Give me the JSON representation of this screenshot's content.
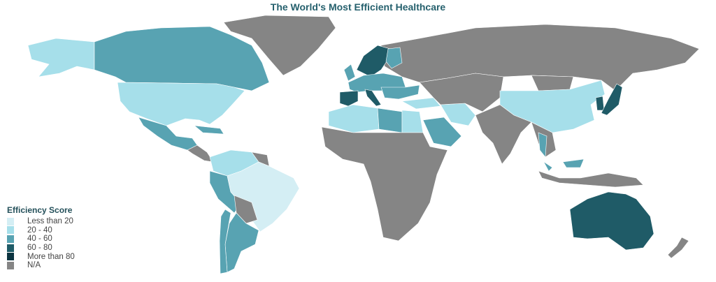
{
  "title": "The World's Most Efficient Healthcare",
  "legend": {
    "title": "Efficiency Score",
    "items": [
      {
        "label": "Less than 20",
        "color": "#d4eef4"
      },
      {
        "label": "20 - 40",
        "color": "#a6dfea"
      },
      {
        "label": "40 - 60",
        "color": "#58a3b2"
      },
      {
        "label": "60 - 80",
        "color": "#1f5b67"
      },
      {
        "label": "More than 80",
        "color": "#0c3440"
      },
      {
        "label": "N/A",
        "color": "#858585"
      }
    ]
  },
  "region_categories": {
    "greenland": 5,
    "canada": 2,
    "alaska": 1,
    "usa": 1,
    "mexico": 2,
    "central_america": 5,
    "caribbean": 2,
    "colombia_venezuela": 1,
    "peru": 2,
    "brazil": 0,
    "bolivia_paraguay": 5,
    "argentina": 2,
    "chile": 2,
    "guianas": 5,
    "russia": 5,
    "scandinavia": 3,
    "finland": 2,
    "western_europe": 2,
    "spain_portugal": 3,
    "italy": 3,
    "eastern_europe": 2,
    "uk": 2,
    "north_africa_west": 1,
    "libya": 2,
    "egypt": 1,
    "africa": 5,
    "saudi": 2,
    "iran": 1,
    "turkey": 1,
    "central_asia": 5,
    "china": 1,
    "india": 5,
    "southeast_asia": 5,
    "thailand": 2,
    "malaysia": 2,
    "korea": 3,
    "japan": 3,
    "indonesia": 5,
    "australia": 3,
    "new_zealand": 5,
    "mongolia": 5
  }
}
